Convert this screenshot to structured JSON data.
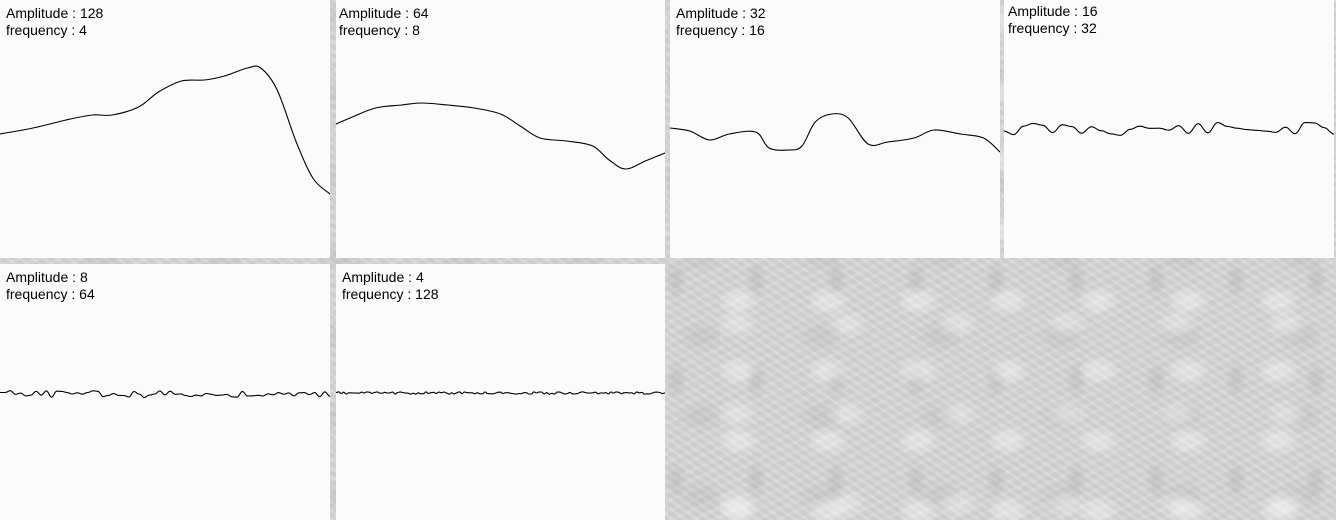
{
  "texts": {
    "amplitude_prefix": "Amplitude : ",
    "frequency_prefix": "frequency : "
  },
  "panels": [
    {
      "amplitude": "128",
      "frequency": "4"
    },
    {
      "amplitude": "64",
      "frequency": "8"
    },
    {
      "amplitude": "32",
      "frequency": "16"
    },
    {
      "amplitude": "16",
      "frequency": "32"
    },
    {
      "amplitude": "8",
      "frequency": "64"
    },
    {
      "amplitude": "4",
      "frequency": "128"
    }
  ],
  "colors": {
    "panel_background": "#fbfbfb",
    "line": "#000000",
    "gutter": "#d4d4d4"
  }
}
